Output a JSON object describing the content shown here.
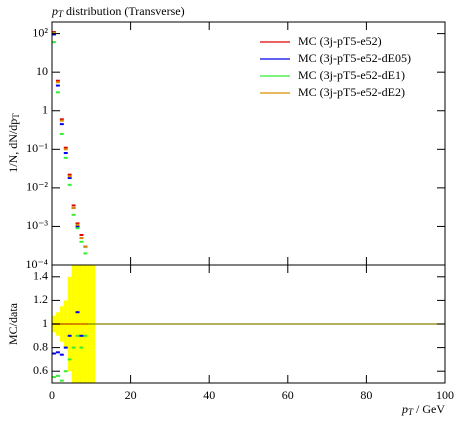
{
  "chart_data": {
    "type": "rivet-ratio",
    "title": {
      "symbol": "p",
      "subscript": "T",
      "text": " distribution (Transverse)"
    },
    "ylabel": {
      "text": "1/N, dN/dp",
      "subscript": "T"
    },
    "ratio_ylabel": "MC/data",
    "xlabel": {
      "symbol": "p",
      "subscript": "T",
      "text": " / GeV"
    },
    "log_y": true,
    "x": [
      0.5,
      1.5,
      2.5,
      3.5,
      4.5,
      5.5,
      6.5,
      7.5,
      8.5
    ],
    "series": [
      {
        "name": "MC (3j-pT5-e52)",
        "color": "#e00000",
        "values": [
          110,
          6,
          0.6,
          0.11,
          0.022,
          0.0035,
          0.0012,
          0.0006,
          0.0003
        ],
        "ratio": [
          1,
          1,
          1,
          1,
          1,
          1,
          1,
          1,
          1
        ]
      },
      {
        "name": "MC (3j-pT5-e52-dE05)",
        "color": "#0000ee",
        "values": [
          95,
          4.5,
          0.45,
          0.08,
          0.018,
          0.003,
          0.001,
          0.0005,
          0.0003
        ],
        "ratio": [
          0.75,
          0.76,
          0.74,
          0.8,
          0.9,
          1.0,
          1.1,
          0.9,
          1.0
        ]
      },
      {
        "name": "MC (3j-pT5-e52-dE1)",
        "color": "#33ee33",
        "values": [
          60,
          3,
          0.25,
          0.06,
          0.012,
          0.002,
          0.0009,
          0.0004,
          0.0002
        ],
        "ratio": [
          0.55,
          0.56,
          0.52,
          0.6,
          0.7,
          0.8,
          0.9,
          0.8,
          0.9
        ]
      },
      {
        "name": "MC (3j-pT5-e52-dE2)",
        "color": "#d98c00",
        "values": [
          105,
          5.5,
          0.55,
          0.1,
          0.02,
          0.003,
          0.0011,
          0.0005,
          0.0003
        ],
        "ratio": [
          1,
          1,
          1,
          1,
          1,
          1,
          1,
          1,
          1
        ]
      }
    ],
    "ratio_reference": 1,
    "band_color": "#ffff00",
    "band_edges": [
      0,
      1,
      2,
      3,
      4,
      5,
      6,
      7,
      8,
      9,
      10,
      11
    ],
    "band_lo": [
      0.93,
      0.9,
      0.85,
      0.8,
      0.6,
      0.5,
      0.5,
      0.5,
      0.5,
      0.5,
      0.5
    ],
    "band_hi": [
      1.07,
      1.1,
      1.15,
      1.2,
      1.4,
      1.5,
      1.5,
      1.5,
      1.5,
      1.5,
      1.5
    ],
    "xlim": [
      0,
      100
    ],
    "xticks": [
      0,
      20,
      40,
      60,
      80,
      100
    ],
    "ylim": [
      0.0001,
      200
    ],
    "yticks": [
      {
        "value": 0.0001,
        "label": "10⁻⁴"
      },
      {
        "value": 0.001,
        "label": "10⁻³"
      },
      {
        "value": 0.01,
        "label": "10⁻²"
      },
      {
        "value": 0.1,
        "label": "10⁻¹"
      },
      1,
      10,
      {
        "value": 100,
        "label": "10²"
      }
    ],
    "ratio_ylim": [
      0.5,
      1.5
    ],
    "ratio_yticks": [
      0.6,
      0.8,
      1,
      1.2,
      1.4
    ],
    "legend": "upper right"
  }
}
